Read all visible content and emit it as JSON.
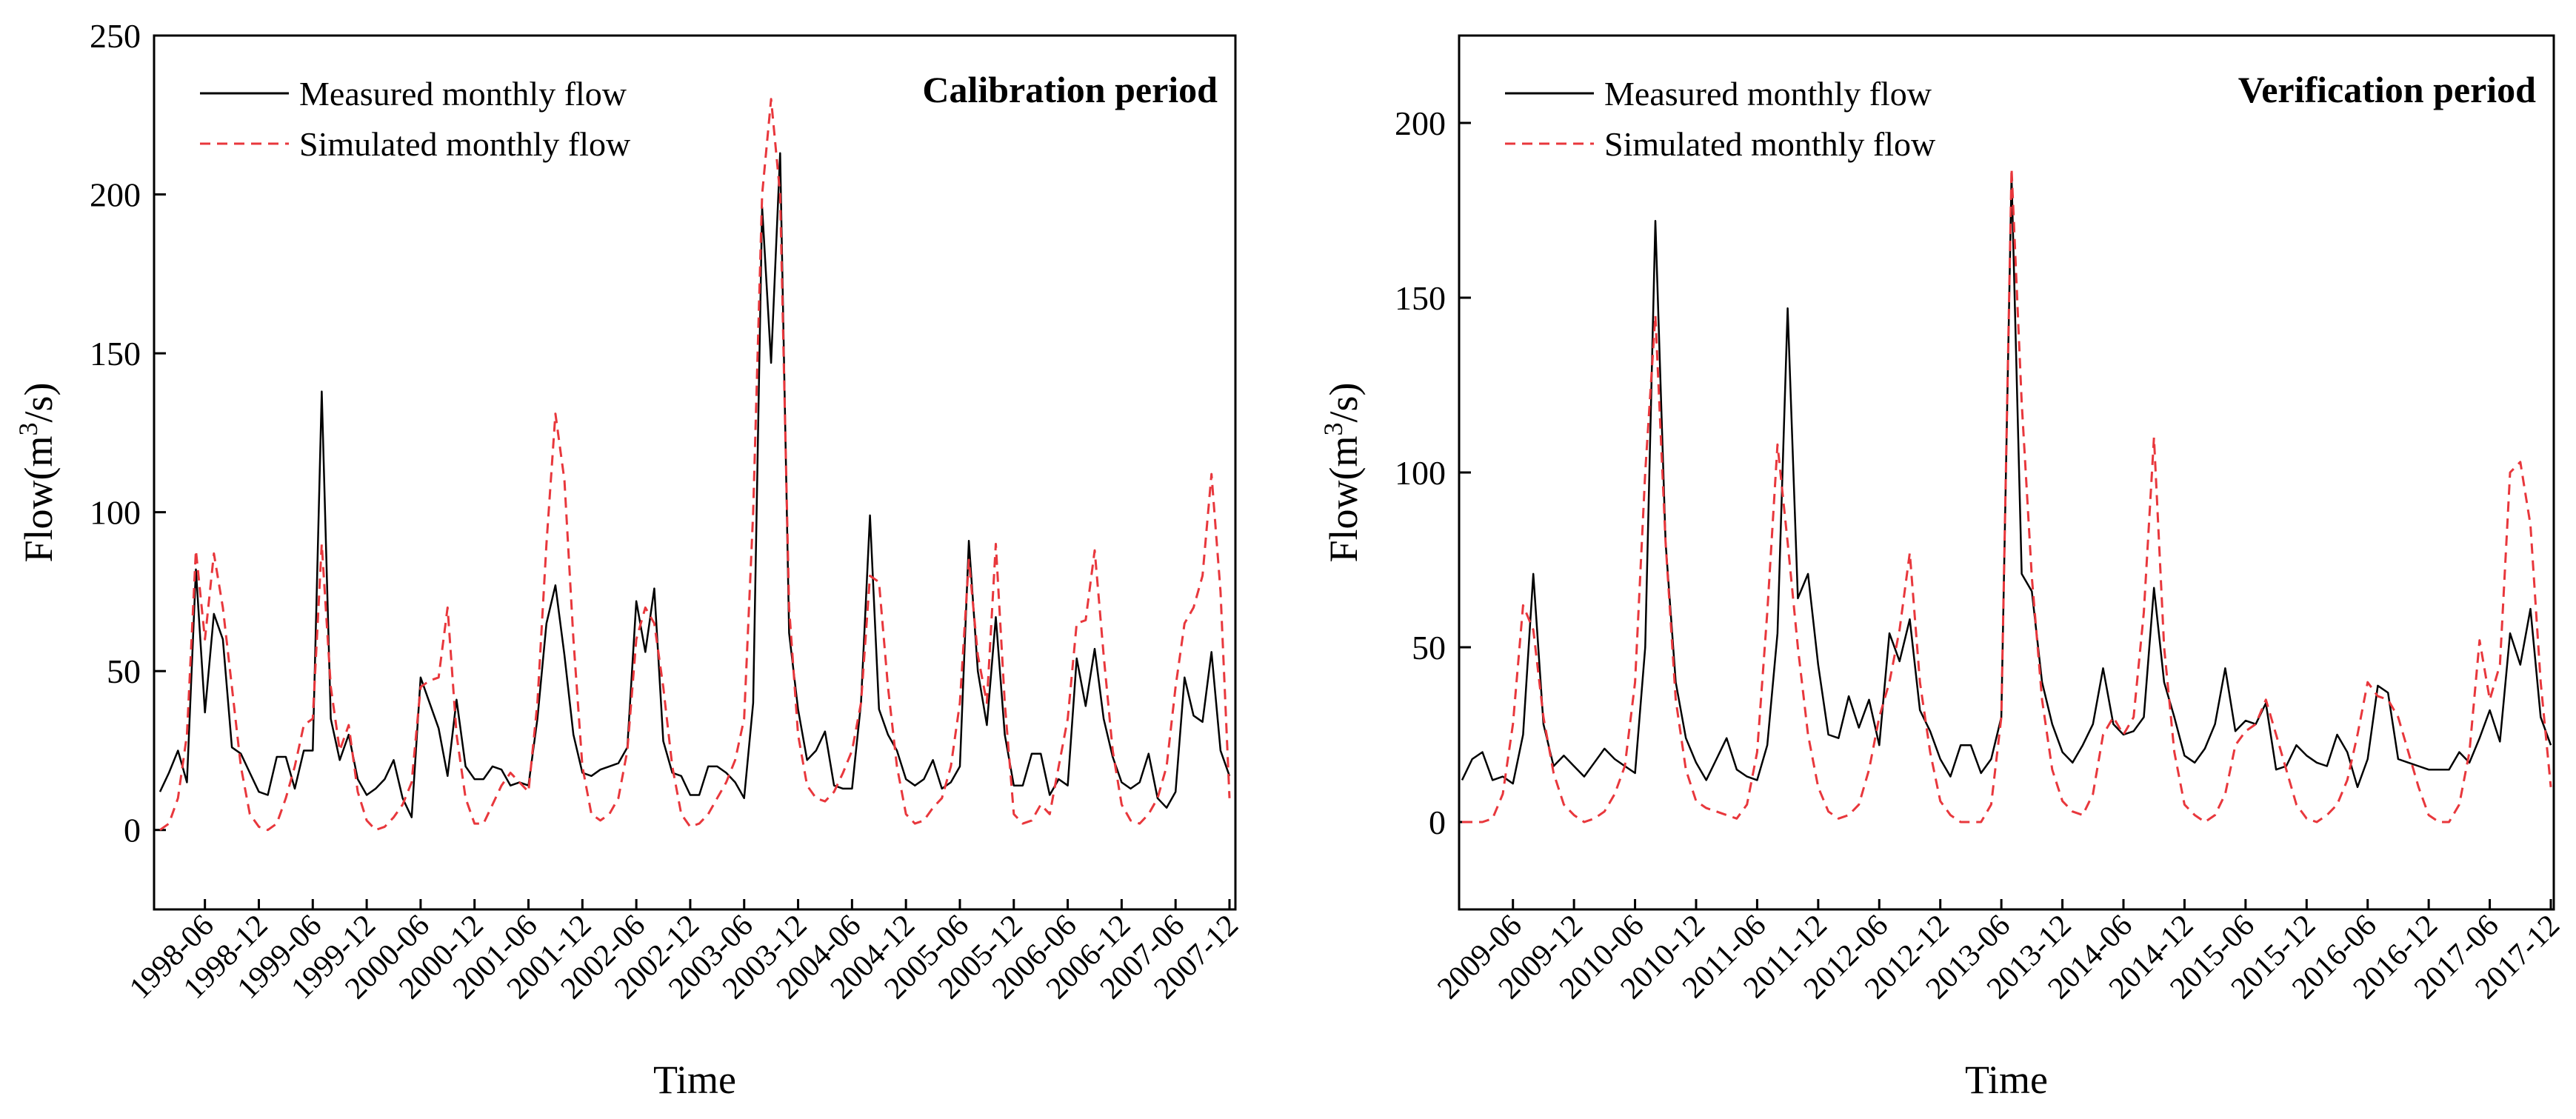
{
  "colors": {
    "measured": "#000000",
    "simulated": "#e8373c",
    "axis": "#000000"
  },
  "chart_data": [
    {
      "type": "line",
      "annotation": "Calibration period",
      "xlabel": "Time",
      "ylabel": "Flow(m³/s)",
      "ylabel_parts": {
        "pre": "Flow(m",
        "sup": "3",
        "post": "/s)"
      },
      "ylim": [
        -25,
        250
      ],
      "yticks": [
        0,
        50,
        100,
        150,
        200,
        250
      ],
      "ytick_labels": [
        "0",
        "50",
        "100",
        "150",
        "200",
        "250"
      ],
      "x_start": "1998-01",
      "x_months": 120,
      "xticks": [
        "1998-06",
        "1998-12",
        "1999-06",
        "1999-12",
        "2000-06",
        "2000-12",
        "2001-06",
        "2001-12",
        "2002-06",
        "2002-12",
        "2003-06",
        "2003-12",
        "2004-06",
        "2004-12",
        "2005-06",
        "2005-12",
        "2006-06",
        "2006-12",
        "2007-06",
        "2007-12"
      ],
      "legend": [
        "Measured monthly flow",
        "Simulated monthly flow"
      ],
      "legend_position": "top-left",
      "series": [
        {
          "name": "Measured monthly flow",
          "style": "solid",
          "values": [
            12,
            18,
            25,
            15,
            82,
            37,
            68,
            60,
            26,
            24,
            18,
            12,
            11,
            23,
            23,
            13,
            25,
            25,
            138,
            35,
            22,
            30,
            16,
            11,
            13,
            16,
            22,
            10,
            4,
            48,
            40,
            32,
            17,
            41,
            20,
            16,
            16,
            20,
            19,
            14,
            15,
            14,
            35,
            65,
            77,
            55,
            30,
            18,
            17,
            19,
            20,
            21,
            26,
            72,
            56,
            76,
            28,
            18,
            17,
            11,
            11,
            20,
            20,
            18,
            15,
            10,
            40,
            196,
            147,
            213,
            62,
            38,
            22,
            25,
            31,
            14,
            13,
            13,
            40,
            99,
            38,
            30,
            25,
            16,
            14,
            16,
            22,
            13,
            15,
            20,
            91,
            50,
            33,
            67,
            30,
            14,
            14,
            24,
            24,
            11,
            16,
            14,
            54,
            39,
            57,
            35,
            23,
            15,
            13,
            15,
            24,
            10,
            7,
            12,
            48,
            36,
            34,
            56,
            25,
            17
          ]
        },
        {
          "name": "Simulated monthly flow",
          "style": "dashed",
          "values": [
            0,
            2,
            10,
            30,
            88,
            60,
            87,
            70,
            45,
            20,
            5,
            1,
            0,
            2,
            10,
            20,
            33,
            35,
            90,
            45,
            25,
            33,
            12,
            3,
            0,
            1,
            4,
            8,
            15,
            45,
            47,
            48,
            70,
            30,
            10,
            2,
            2,
            8,
            14,
            18,
            15,
            12,
            40,
            90,
            131,
            110,
            60,
            20,
            5,
            3,
            5,
            10,
            25,
            60,
            70,
            65,
            45,
            20,
            5,
            1,
            2,
            5,
            10,
            15,
            22,
            35,
            100,
            200,
            230,
            200,
            70,
            30,
            14,
            10,
            9,
            12,
            18,
            25,
            40,
            80,
            78,
            45,
            20,
            5,
            2,
            3,
            7,
            10,
            20,
            40,
            85,
            55,
            40,
            90,
            40,
            5,
            2,
            3,
            8,
            5,
            20,
            35,
            65,
            66,
            88,
            55,
            25,
            8,
            3,
            2,
            5,
            10,
            20,
            45,
            65,
            70,
            80,
            112,
            75,
            10
          ]
        }
      ]
    },
    {
      "type": "line",
      "annotation": "Verification period",
      "xlabel": "Time",
      "ylabel": "Flow(m³/s)",
      "ylabel_parts": {
        "pre": "Flow(m",
        "sup": "3",
        "post": "/s)"
      },
      "ylim": [
        -25,
        225
      ],
      "yticks": [
        0,
        50,
        100,
        150,
        200
      ],
      "ytick_labels": [
        "0",
        "50",
        "100",
        "150",
        "200"
      ],
      "x_start": "2009-01",
      "x_months": 108,
      "xticks": [
        "2009-06",
        "2009-12",
        "2010-06",
        "2010-12",
        "2011-06",
        "2011-12",
        "2012-06",
        "2012-12",
        "2013-06",
        "2013-12",
        "2014-06",
        "2014-12",
        "2015-06",
        "2015-12",
        "2016-06",
        "2016-12",
        "2017-06",
        "2017-12"
      ],
      "legend": [
        "Measured monthly flow",
        "Simulated monthly flow"
      ],
      "legend_position": "top-left",
      "series": [
        {
          "name": "Measured monthly flow",
          "style": "solid",
          "values": [
            12,
            18,
            20,
            12,
            13,
            11,
            25,
            71,
            28,
            16,
            19,
            16,
            13,
            17,
            21,
            18,
            16,
            14,
            50,
            172,
            80,
            40,
            24,
            17,
            12,
            18,
            24,
            15,
            13,
            12,
            22,
            54,
            147,
            64,
            71,
            45,
            25,
            24,
            36,
            27,
            35,
            22,
            54,
            46,
            58,
            32,
            26,
            18,
            13,
            22,
            22,
            14,
            18,
            30,
            185,
            71,
            66,
            40,
            28,
            20,
            17,
            22,
            28,
            44,
            28,
            25,
            26,
            30,
            67,
            40,
            30,
            19,
            17,
            21,
            28,
            44,
            26,
            29,
            28,
            34,
            15,
            16,
            22,
            19,
            17,
            16,
            25,
            20,
            10,
            18,
            39,
            37,
            18,
            17,
            16,
            15,
            15,
            15,
            20,
            17,
            24,
            32,
            23,
            54,
            45,
            61,
            30,
            22
          ]
        },
        {
          "name": "Simulated monthly flow",
          "style": "dashed",
          "values": [
            0,
            0,
            0,
            1,
            8,
            28,
            62,
            55,
            30,
            14,
            5,
            2,
            0,
            1,
            3,
            8,
            16,
            40,
            100,
            145,
            80,
            35,
            15,
            6,
            4,
            3,
            2,
            1,
            5,
            20,
            60,
            108,
            80,
            50,
            25,
            10,
            3,
            1,
            2,
            5,
            15,
            30,
            40,
            55,
            77,
            40,
            20,
            6,
            2,
            0,
            0,
            0,
            5,
            30,
            187,
            120,
            70,
            35,
            15,
            6,
            3,
            2,
            8,
            25,
            30,
            25,
            30,
            60,
            110,
            50,
            20,
            5,
            2,
            0,
            2,
            8,
            22,
            26,
            28,
            35,
            25,
            15,
            5,
            1,
            0,
            2,
            5,
            12,
            25,
            40,
            36,
            35,
            30,
            20,
            10,
            2,
            0,
            0,
            5,
            20,
            52,
            35,
            45,
            100,
            103,
            85,
            40,
            10
          ]
        }
      ]
    }
  ]
}
